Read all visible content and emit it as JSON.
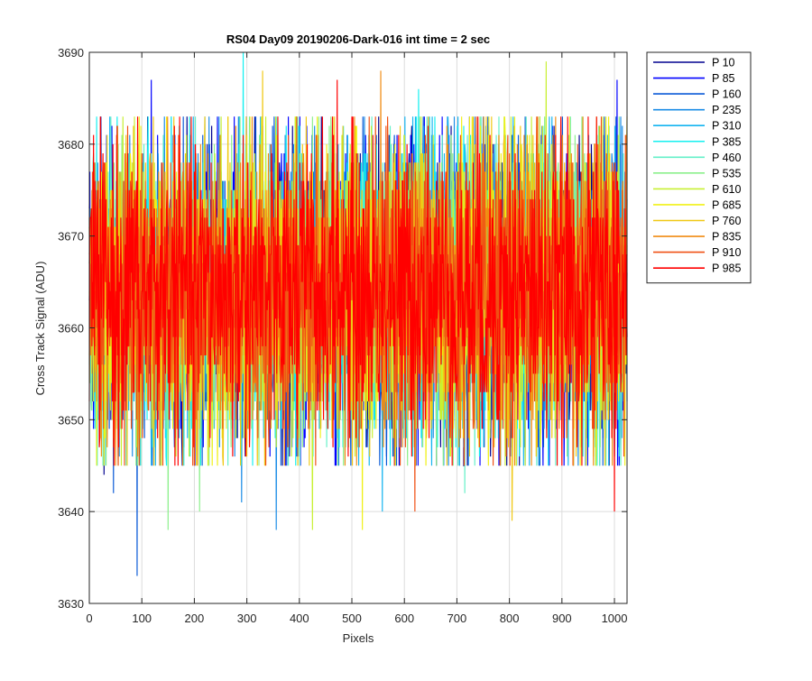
{
  "chart_data": {
    "type": "line",
    "title": "RS04 Day09 20190206-Dark-016 int time = 2 sec",
    "xlabel": "Pixels",
    "ylabel": "Cross Track Signal (ADU)",
    "xlim": [
      0,
      1024
    ],
    "ylim": [
      3630,
      3690
    ],
    "xticks": [
      0,
      100,
      200,
      300,
      400,
      500,
      600,
      700,
      800,
      900,
      1000
    ],
    "yticks": [
      3630,
      3640,
      3650,
      3660,
      3670,
      3680,
      3690
    ],
    "grid": true,
    "legend_position": "outside-top-right",
    "noise_center_adu": 3664,
    "noise_std_adu": 8,
    "series": [
      {
        "name": "P 10",
        "color": "#00008f",
        "extremes": [
          {
            "x": 28,
            "y": 3644
          },
          {
            "x": 1000,
            "y": 3646
          }
        ]
      },
      {
        "name": "P 85",
        "color": "#0000ff",
        "extremes": [
          {
            "x": 118,
            "y": 3687
          },
          {
            "x": 402,
            "y": 3645
          },
          {
            "x": 1005,
            "y": 3687
          }
        ]
      },
      {
        "name": "P 160",
        "color": "#0a5ad7",
        "extremes": [
          {
            "x": 91,
            "y": 3633
          },
          {
            "x": 46,
            "y": 3642
          }
        ]
      },
      {
        "name": "P 235",
        "color": "#1a8ce6",
        "extremes": [
          {
            "x": 356,
            "y": 3638
          },
          {
            "x": 290,
            "y": 3641
          }
        ]
      },
      {
        "name": "P 310",
        "color": "#14b4f0",
        "extremes": [
          {
            "x": 558,
            "y": 3640
          }
        ]
      },
      {
        "name": "P 385",
        "color": "#14f0f0",
        "extremes": [
          {
            "x": 293,
            "y": 3690
          },
          {
            "x": 627,
            "y": 3686
          }
        ]
      },
      {
        "name": "P 460",
        "color": "#64f0c8",
        "extremes": [
          {
            "x": 715,
            "y": 3642
          }
        ]
      },
      {
        "name": "P 535",
        "color": "#8cf08c",
        "extremes": [
          {
            "x": 150,
            "y": 3638
          },
          {
            "x": 210,
            "y": 3640
          }
        ]
      },
      {
        "name": "P 610",
        "color": "#c8f032",
        "extremes": [
          {
            "x": 425,
            "y": 3638
          },
          {
            "x": 870,
            "y": 3689
          }
        ]
      },
      {
        "name": "P 685",
        "color": "#f0f014",
        "extremes": [
          {
            "x": 520,
            "y": 3638
          }
        ]
      },
      {
        "name": "P 760",
        "color": "#f0c814",
        "extremes": [
          {
            "x": 330,
            "y": 3688
          },
          {
            "x": 805,
            "y": 3639
          }
        ]
      },
      {
        "name": "P 835",
        "color": "#f08c14",
        "extremes": [
          {
            "x": 555,
            "y": 3688
          }
        ]
      },
      {
        "name": "P 910",
        "color": "#f05014",
        "extremes": [
          {
            "x": 620,
            "y": 3640
          }
        ]
      },
      {
        "name": "P 985",
        "color": "#ff0000",
        "extremes": [
          {
            "x": 472,
            "y": 3687
          },
          {
            "x": 1000,
            "y": 3640
          }
        ]
      }
    ]
  }
}
